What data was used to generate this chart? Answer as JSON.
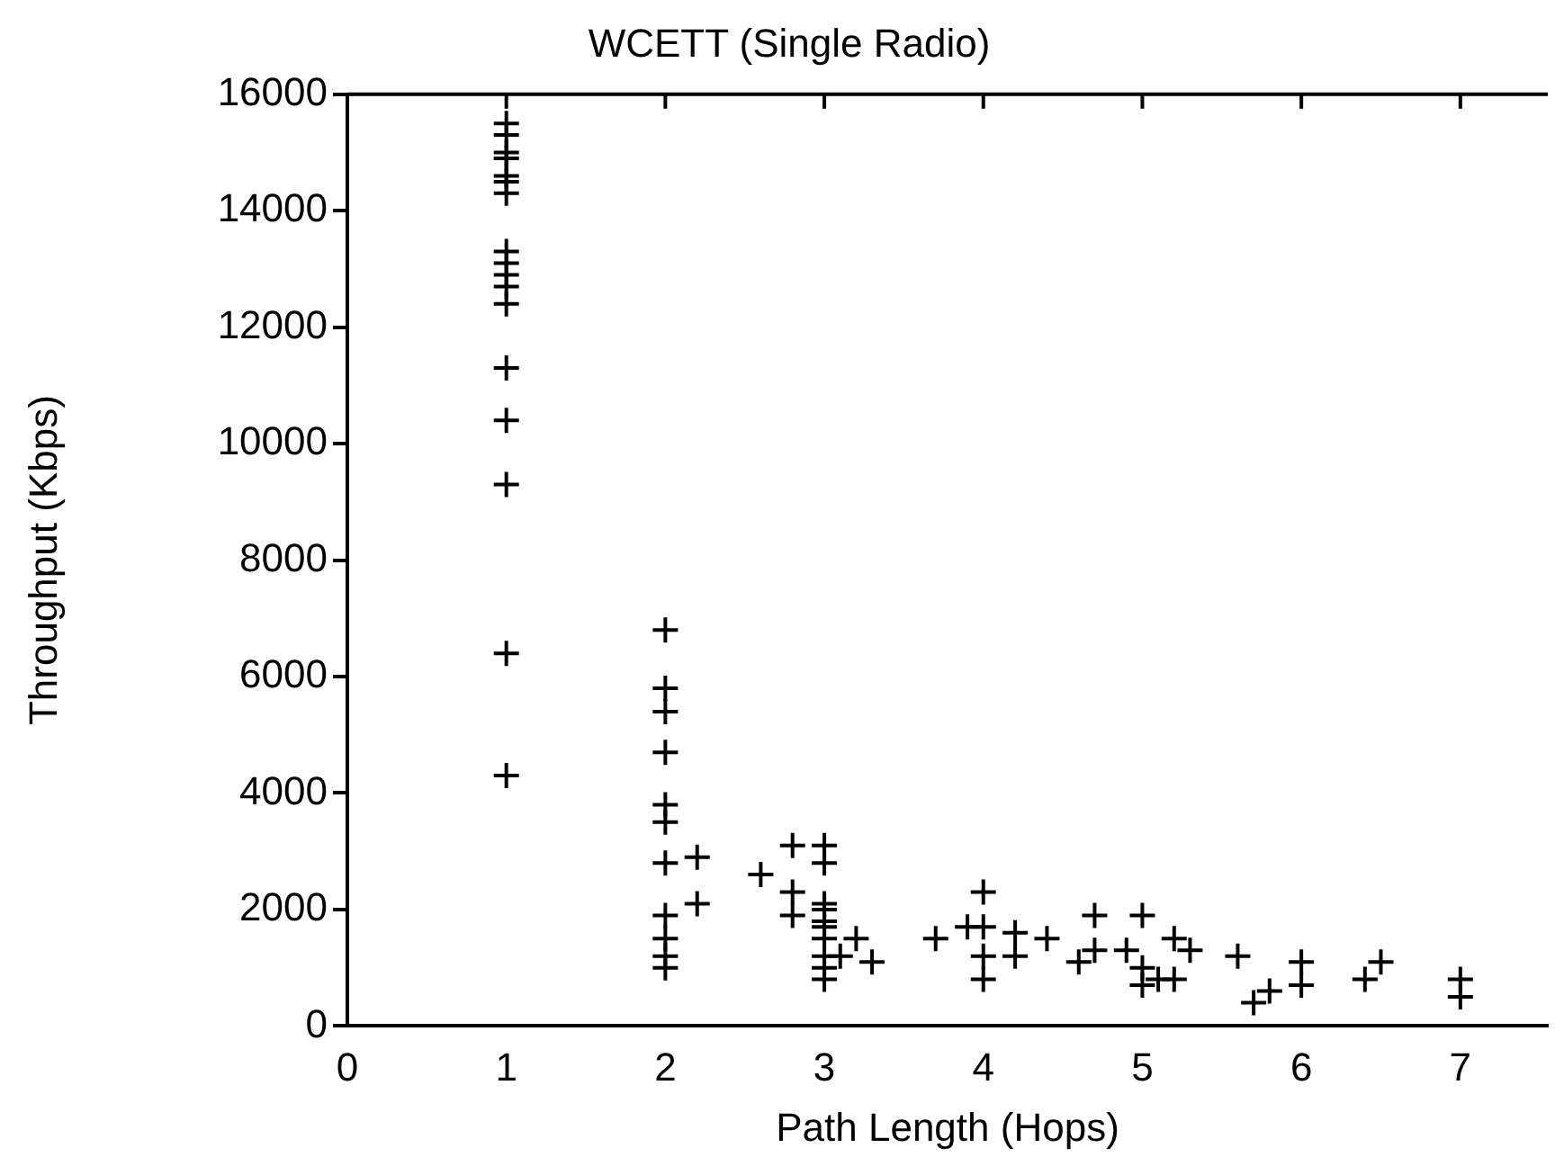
{
  "chart_data": {
    "type": "scatter",
    "title": "WCETT (Single Radio)",
    "xlabel": "Path Length (Hops)",
    "ylabel": "Throughput (Kbps)",
    "xlim": [
      0,
      7.55
    ],
    "xticks": [
      0,
      1,
      2,
      3,
      4,
      5,
      6,
      7
    ],
    "ylim": [
      0,
      16000
    ],
    "yticks": [
      0,
      2000,
      4000,
      6000,
      8000,
      10000,
      12000,
      14000,
      16000
    ],
    "grid": false,
    "legend": false,
    "marker": "cross",
    "series": [
      {
        "color": "#000000",
        "x": [
          1,
          1,
          1,
          1,
          1,
          1,
          1,
          1,
          1,
          1,
          1,
          1,
          1,
          1,
          1,
          1,
          1,
          2,
          2,
          2,
          2,
          2,
          2,
          2,
          2,
          2,
          2,
          2,
          2.2,
          2.2,
          2.6,
          2.8,
          2.8,
          2.8,
          3,
          3,
          3,
          3,
          3,
          3,
          3,
          3,
          3,
          3,
          3.1,
          3.2,
          3.3,
          3.7,
          3.9,
          4,
          4,
          4,
          4,
          4.2,
          4.2,
          4.4,
          4.6,
          4.7,
          4.7,
          4.9,
          5,
          5,
          5,
          5.1,
          5.2,
          5.2,
          5.3,
          5.6,
          5.7,
          5.8,
          6,
          6,
          6.4,
          6.5,
          7,
          7
        ],
        "values": [
          15500,
          15300,
          15000,
          14900,
          14600,
          14500,
          14300,
          13300,
          13100,
          12900,
          12700,
          12400,
          11300,
          10400,
          9300,
          6400,
          4300,
          6800,
          5800,
          5400,
          4700,
          3800,
          3500,
          2800,
          1900,
          1500,
          1200,
          1000,
          2900,
          2100,
          2600,
          3100,
          2300,
          1900,
          3100,
          2800,
          2100,
          2000,
          1800,
          1700,
          1500,
          1200,
          1000,
          800,
          1200,
          1500,
          1100,
          1500,
          1700,
          2300,
          1700,
          1200,
          800,
          1600,
          1200,
          1500,
          1100,
          1900,
          1300,
          1300,
          1900,
          1000,
          700,
          800,
          1500,
          800,
          1300,
          1200,
          400,
          600,
          1100,
          700,
          800,
          1100,
          800,
          500
        ]
      }
    ]
  }
}
